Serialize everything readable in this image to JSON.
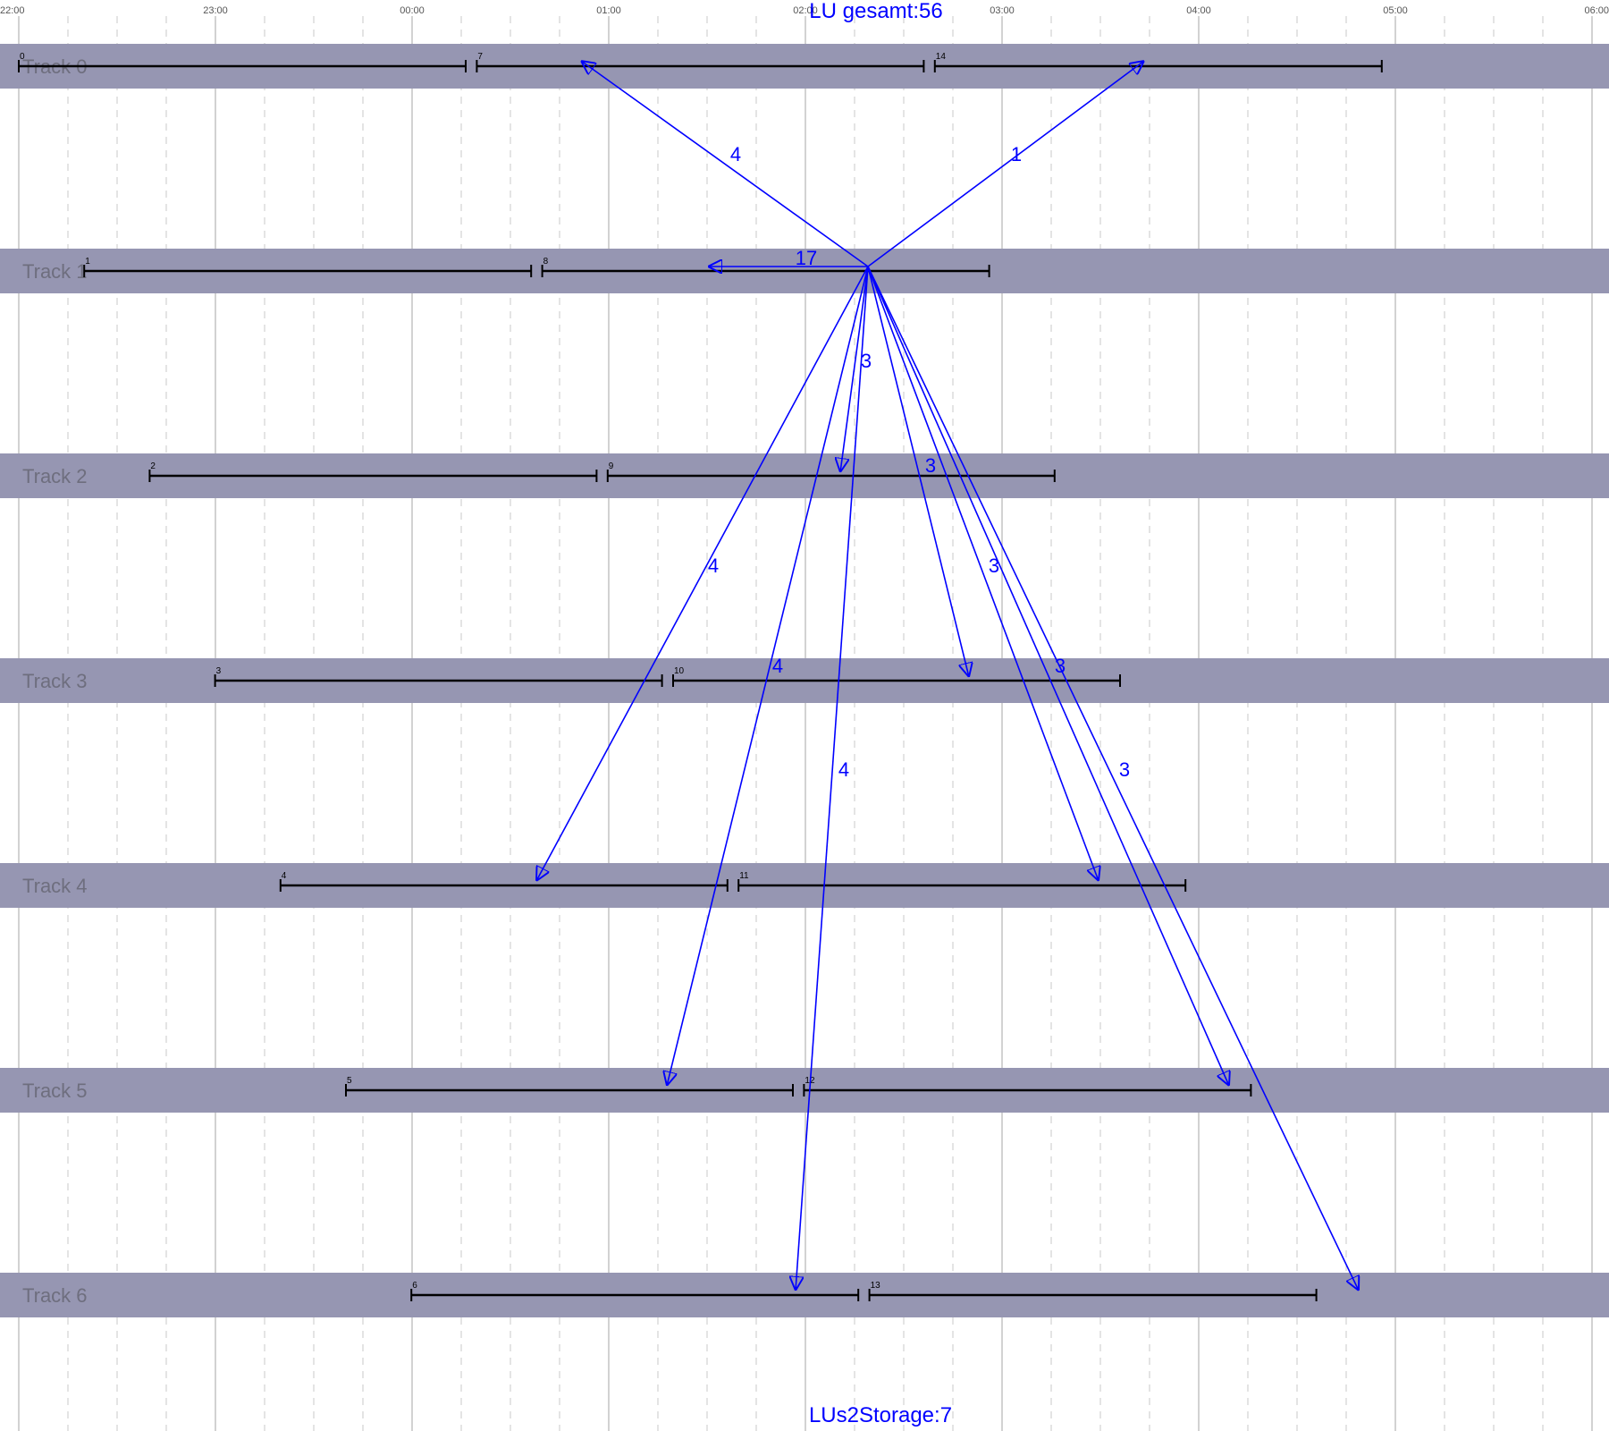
{
  "header": {
    "title": "LU gesamt:56"
  },
  "footer": {
    "text": "LUs2Storage:7"
  },
  "colors": {
    "track_band": "#9696b2",
    "track_label": "#6e6e7e",
    "segment": "#000000",
    "arrow": "#0000ff",
    "grid_major": "#b4b4b4",
    "grid_minor": "#c8c8c8"
  },
  "time_axis": {
    "ticks": [
      "22:00",
      "23:00",
      "00:00",
      "01:00",
      "02:00",
      "03:00",
      "04:00",
      "05:00",
      "06:00"
    ]
  },
  "tracks": [
    {
      "label": "Track 0"
    },
    {
      "label": "Track 1"
    },
    {
      "label": "Track 2"
    },
    {
      "label": "Track 3"
    },
    {
      "label": "Track 4"
    },
    {
      "label": "Track 5"
    },
    {
      "label": "Track 6"
    }
  ],
  "lus": [
    {
      "id": "0",
      "track": 0
    },
    {
      "id": "1",
      "track": 1
    },
    {
      "id": "2",
      "track": 2
    },
    {
      "id": "3",
      "track": 3
    },
    {
      "id": "4",
      "track": 4
    },
    {
      "id": "5",
      "track": 5
    },
    {
      "id": "6",
      "track": 6
    },
    {
      "id": "7",
      "track": 0
    },
    {
      "id": "8",
      "track": 1
    },
    {
      "id": "9",
      "track": 2
    },
    {
      "id": "10",
      "track": 3
    },
    {
      "id": "11",
      "track": 4
    },
    {
      "id": "12",
      "track": 5
    },
    {
      "id": "13",
      "track": 6
    },
    {
      "id": "14",
      "track": 0
    }
  ],
  "transfers": [
    {
      "to": "7",
      "count": "4"
    },
    {
      "to": "14",
      "count": "1"
    },
    {
      "to": "8",
      "count": "17"
    },
    {
      "to": "9",
      "count": "3"
    },
    {
      "to": "10",
      "count": "3"
    },
    {
      "to": "4",
      "count": "4"
    },
    {
      "to": "11",
      "count": "3"
    },
    {
      "to": "5",
      "count": "4"
    },
    {
      "to": "12",
      "count": "3"
    },
    {
      "to": "6",
      "count": "4"
    },
    {
      "to": "13",
      "count": "3"
    }
  ]
}
